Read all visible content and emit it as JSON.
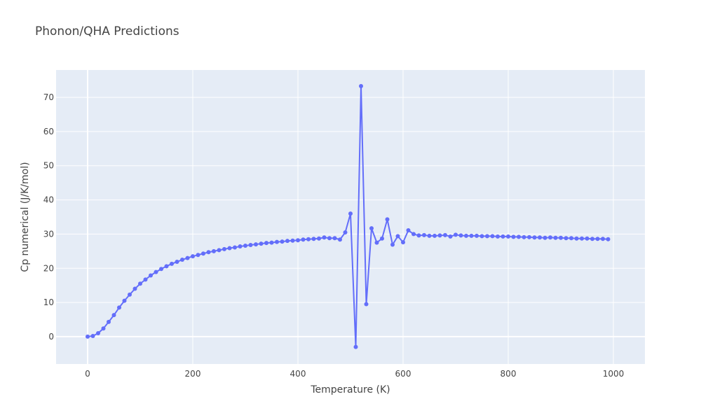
{
  "chart_data": {
    "type": "line",
    "title": "Phonon/QHA Predictions",
    "xlabel": "Temperature (K)",
    "ylabel": "Cp numerical (J/K/mol)",
    "xlim": [
      -60,
      1060
    ],
    "ylim": [
      -8,
      78
    ],
    "x_ticks": [
      0,
      200,
      400,
      600,
      800,
      1000
    ],
    "y_ticks": [
      0,
      10,
      20,
      30,
      40,
      50,
      60,
      70
    ],
    "grid": true,
    "colors": {
      "line": "#636efa",
      "plot_bg": "#e5ecf6",
      "grid": "#ffffff"
    },
    "series": [
      {
        "x": [
          0,
          10,
          20,
          30,
          40,
          50,
          60,
          70,
          80,
          90,
          100,
          110,
          120,
          130,
          140,
          150,
          160,
          170,
          180,
          190,
          200,
          210,
          220,
          230,
          240,
          250,
          260,
          270,
          280,
          290,
          300,
          310,
          320,
          330,
          340,
          350,
          360,
          370,
          380,
          390,
          400,
          410,
          420,
          430,
          440,
          450,
          460,
          470,
          480,
          490,
          500,
          510,
          520,
          530,
          540,
          550,
          560,
          570,
          580,
          590,
          600,
          610,
          620,
          630,
          640,
          650,
          660,
          670,
          680,
          690,
          700,
          710,
          720,
          730,
          740,
          750,
          760,
          770,
          780,
          790,
          800,
          810,
          820,
          830,
          840,
          850,
          860,
          870,
          880,
          890,
          900,
          910,
          920,
          930,
          940,
          950,
          960,
          970,
          980,
          990
        ],
        "y": [
          0.0,
          0.2,
          1.0,
          2.4,
          4.3,
          6.3,
          8.5,
          10.5,
          12.3,
          14.0,
          15.5,
          16.7,
          17.9,
          18.9,
          19.8,
          20.6,
          21.3,
          21.9,
          22.5,
          23.0,
          23.5,
          23.9,
          24.3,
          24.7,
          25.0,
          25.3,
          25.6,
          25.9,
          26.1,
          26.4,
          26.6,
          26.8,
          27.0,
          27.2,
          27.4,
          27.5,
          27.7,
          27.8,
          28.0,
          28.1,
          28.2,
          28.4,
          28.5,
          28.6,
          28.7,
          29.0,
          28.8,
          28.8,
          28.4,
          30.5,
          36.0,
          -3.0,
          73.3,
          9.5,
          31.7,
          27.5,
          28.7,
          34.3,
          26.9,
          29.4,
          27.6,
          31.1,
          30.0,
          29.6,
          29.7,
          29.5,
          29.5,
          29.6,
          29.7,
          29.3,
          29.8,
          29.6,
          29.5,
          29.5,
          29.5,
          29.4,
          29.4,
          29.4,
          29.3,
          29.3,
          29.3,
          29.2,
          29.2,
          29.1,
          29.1,
          29.0,
          29.0,
          28.9,
          29.0,
          28.9,
          28.9,
          28.8,
          28.8,
          28.7,
          28.7,
          28.7,
          28.6,
          28.6,
          28.6,
          28.5
        ]
      }
    ]
  }
}
